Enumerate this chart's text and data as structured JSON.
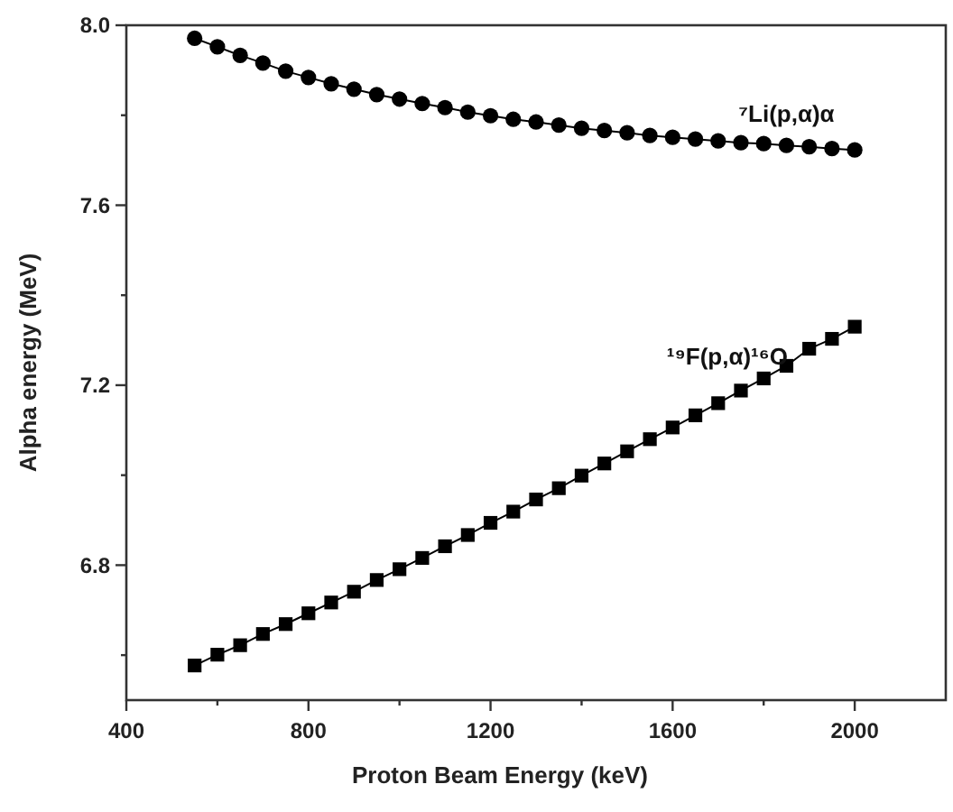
{
  "chart_data": {
    "type": "line",
    "xlabel": "Proton Beam Energy (keV)",
    "ylabel": "Alpha energy (MeV)",
    "x": [
      550,
      600,
      650,
      700,
      750,
      800,
      850,
      900,
      950,
      1000,
      1050,
      1100,
      1150,
      1200,
      1250,
      1300,
      1350,
      1400,
      1450,
      1500,
      1550,
      1600,
      1650,
      1700,
      1750,
      1800,
      1850,
      1900,
      1950,
      2000
    ],
    "series": [
      {
        "color": "#000000",
        "marker": "circle",
        "values": [
          7.971,
          7.952,
          7.933,
          7.916,
          7.898,
          7.884,
          7.87,
          7.858,
          7.846,
          7.836,
          7.826,
          7.817,
          7.807,
          7.799,
          7.791,
          7.785,
          7.778,
          7.771,
          7.766,
          7.761,
          7.755,
          7.751,
          7.747,
          7.743,
          7.739,
          7.737,
          7.733,
          7.73,
          7.726,
          7.723
        ]
      },
      {
        "color": "#000000",
        "marker": "square",
        "values": [
          6.577,
          6.601,
          6.622,
          6.647,
          6.669,
          6.693,
          6.717,
          6.741,
          6.767,
          6.791,
          6.816,
          6.842,
          6.867,
          6.894,
          6.919,
          6.946,
          6.971,
          6.999,
          7.026,
          7.053,
          7.08,
          7.106,
          7.133,
          7.16,
          7.188,
          7.215,
          7.243,
          7.281,
          7.303,
          7.33
        ]
      }
    ],
    "annotations": [
      {
        "text": "⁷Li(p,α)α",
        "x": 1850,
        "y": 7.73
      },
      {
        "text": "¹⁹F(p,α)¹⁶O",
        "x": 1720,
        "y": 7.19
      }
    ],
    "xlim": [
      400,
      2200
    ],
    "ylim": [
      6.5,
      8.0
    ],
    "xticks": [
      400,
      {
        "value": 600,
        "label": null
      },
      800,
      {
        "value": 1000,
        "label": null
      },
      1200,
      {
        "value": 1400,
        "label": null
      },
      1600,
      {
        "value": 1800,
        "label": null
      },
      2000
    ],
    "yticks": [
      {
        "value": 6.6,
        "label": null
      },
      6.8,
      {
        "value": 7.0,
        "label": null
      },
      7.2,
      {
        "value": 7.4,
        "label": null
      },
      7.6,
      {
        "value": 7.8,
        "label": null
      },
      "8.0"
    ],
    "grid": false,
    "line_style": "solid"
  }
}
